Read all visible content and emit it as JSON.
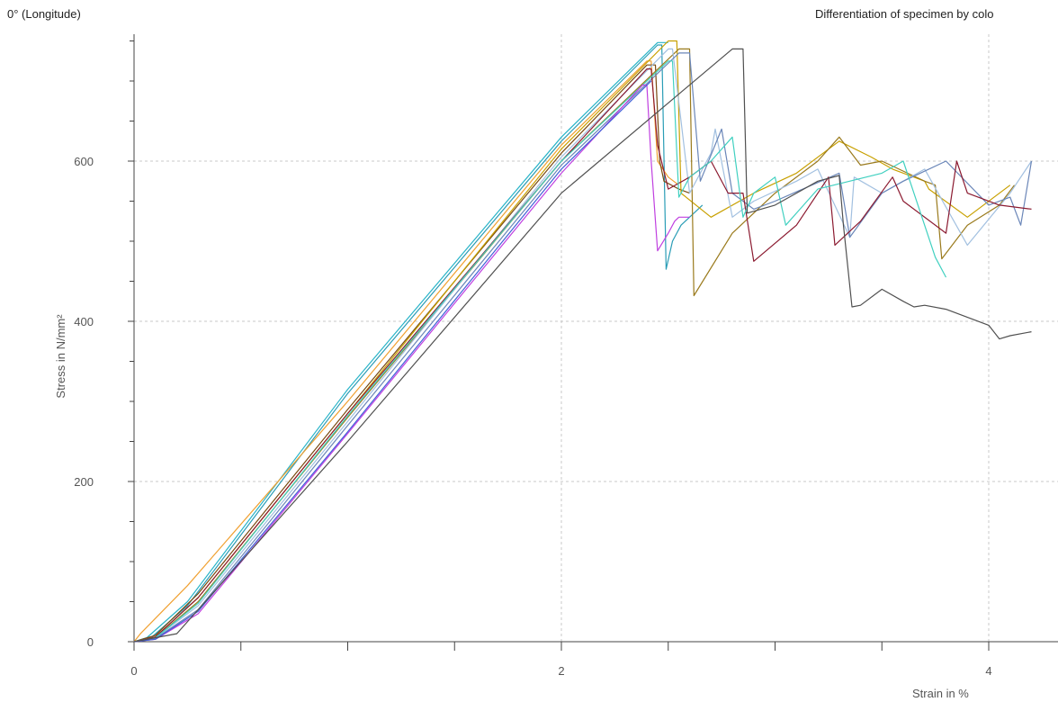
{
  "header": {
    "left_title": "0° (Longitude)",
    "right_note": "Differentiation of specimen by colo"
  },
  "chart_data": {
    "type": "line",
    "title": "0° (Longitude)",
    "xlabel": "Strain in %",
    "ylabel": "Stress in N/mm²",
    "xlim": [
      0,
      4.2
    ],
    "ylim": [
      0,
      760
    ],
    "x_ticks": [
      0,
      2,
      4
    ],
    "y_ticks": [
      0,
      200,
      400,
      600
    ],
    "grid": true,
    "series": [
      {
        "color": "#2a9db6",
        "x": [
          0,
          0.08,
          0.25,
          1.0,
          2.0,
          2.45,
          2.47,
          2.49,
          2.52,
          2.56,
          2.6,
          2.66
        ],
        "y": [
          0,
          5,
          45,
          310,
          625,
          745,
          745,
          465,
          500,
          520,
          530,
          545
        ]
      },
      {
        "color": "#29b4c8",
        "x": [
          0,
          0.06,
          0.25,
          1.0,
          2.0,
          2.45,
          2.5
        ],
        "y": [
          0,
          5,
          50,
          315,
          630,
          748,
          748
        ]
      },
      {
        "color": "#f0a030",
        "x": [
          0,
          0.03,
          0.25,
          1.0,
          2.0,
          2.4,
          2.42,
          2.45,
          2.5,
          2.55
        ],
        "y": [
          0,
          10,
          70,
          300,
          620,
          725,
          725,
          600,
          580,
          570
        ]
      },
      {
        "color": "#7a4a10",
        "x": [
          0,
          0.1,
          0.3,
          1.0,
          2.0,
          2.4,
          2.44,
          2.46,
          2.48,
          2.55,
          2.6
        ],
        "y": [
          0,
          8,
          60,
          290,
          610,
          720,
          720,
          600,
          575,
          565,
          560
        ]
      },
      {
        "color": "#c8a000",
        "x": [
          0,
          0.1,
          0.3,
          1.0,
          2.0,
          2.5,
          2.54,
          2.56,
          2.7,
          2.9,
          3.1,
          3.3,
          3.45,
          3.55,
          3.7,
          3.72,
          3.9,
          4.1
        ],
        "y": [
          0,
          6,
          55,
          285,
          615,
          750,
          750,
          560,
          530,
          560,
          585,
          625,
          605,
          590,
          575,
          565,
          530,
          570
        ]
      },
      {
        "color": "#9a7a1c",
        "x": [
          0,
          0.1,
          0.3,
          1.0,
          2.0,
          2.55,
          2.6,
          2.62,
          2.8,
          3.0,
          3.2,
          3.3,
          3.4,
          3.5,
          3.7,
          3.75,
          3.78,
          3.9,
          4.05,
          4.12
        ],
        "y": [
          0,
          5,
          50,
          280,
          600,
          740,
          740,
          432,
          510,
          560,
          600,
          630,
          595,
          600,
          575,
          570,
          478,
          520,
          545,
          570
        ]
      },
      {
        "color": "#a2c0e0",
        "x": [
          0,
          0.1,
          0.3,
          1.0,
          2.0,
          2.5,
          2.52,
          2.6,
          2.7,
          2.72,
          2.8,
          2.9,
          3.1,
          3.2,
          3.35,
          3.37,
          3.5,
          3.7,
          3.9,
          4.1,
          4.2
        ],
        "y": [
          0,
          5,
          45,
          275,
          605,
          740,
          740,
          560,
          610,
          640,
          530,
          550,
          575,
          590,
          505,
          580,
          560,
          590,
          495,
          560,
          600
        ]
      },
      {
        "color": "#6a86b8",
        "x": [
          0,
          0.1,
          0.3,
          1.0,
          2.0,
          2.55,
          2.6,
          2.65,
          2.75,
          2.8,
          2.9,
          3.0,
          3.3,
          3.35,
          3.5,
          3.6,
          3.8,
          4.0,
          4.1,
          4.15,
          4.2
        ],
        "y": [
          0,
          4,
          40,
          270,
          595,
          735,
          735,
          575,
          640,
          560,
          540,
          550,
          585,
          505,
          560,
          575,
          600,
          545,
          555,
          520,
          600
        ]
      },
      {
        "color": "#8b1a30",
        "x": [
          0,
          0.1,
          0.3,
          1.0,
          2.0,
          2.4,
          2.42,
          2.45,
          2.5,
          2.6,
          2.7,
          2.78,
          2.85,
          2.9,
          3.1,
          3.25,
          3.28,
          3.4,
          3.55,
          3.6,
          3.8,
          3.85,
          3.9,
          4.05,
          4.2
        ],
        "y": [
          0,
          6,
          55,
          285,
          600,
          715,
          715,
          620,
          565,
          580,
          600,
          560,
          560,
          475,
          520,
          580,
          495,
          525,
          580,
          550,
          510,
          600,
          560,
          545,
          540
        ]
      },
      {
        "color": "#40d0c0",
        "x": [
          0,
          0.1,
          0.3,
          1.0,
          2.0,
          2.5,
          2.52,
          2.55,
          2.6,
          2.7,
          2.8,
          2.85,
          2.9,
          3.0,
          3.05,
          3.2,
          3.5,
          3.6,
          3.75,
          3.8
        ],
        "y": [
          0,
          5,
          48,
          282,
          600,
          725,
          725,
          555,
          580,
          600,
          630,
          530,
          560,
          580,
          520,
          565,
          585,
          600,
          480,
          455
        ]
      },
      {
        "color": "#c040e0",
        "x": [
          0,
          0.1,
          0.3,
          1.0,
          2.0,
          2.38,
          2.4,
          2.42,
          2.45,
          2.5,
          2.53,
          2.55,
          2.6
        ],
        "y": [
          0,
          3,
          35,
          260,
          585,
          695,
          695,
          600,
          488,
          510,
          525,
          530,
          530
        ]
      },
      {
        "color": "#4060d8",
        "x": [
          0,
          0.1,
          0.3,
          1.0,
          2.0,
          2.42
        ],
        "y": [
          0,
          3,
          38,
          262,
          590,
          700
        ]
      },
      {
        "color": "#505050",
        "x": [
          0,
          0.2,
          0.4,
          1.0,
          2.0,
          2.8,
          2.85,
          2.87,
          3.0,
          3.1,
          3.2,
          3.3,
          3.32,
          3.36,
          3.4,
          3.5,
          3.6,
          3.65,
          3.7,
          3.8,
          4.0,
          4.05,
          4.1,
          4.2
        ],
        "y": [
          0,
          10,
          70,
          250,
          560,
          740,
          740,
          535,
          545,
          560,
          575,
          582,
          520,
          418,
          420,
          440,
          425,
          418,
          420,
          415,
          395,
          378,
          382,
          387
        ]
      }
    ]
  }
}
